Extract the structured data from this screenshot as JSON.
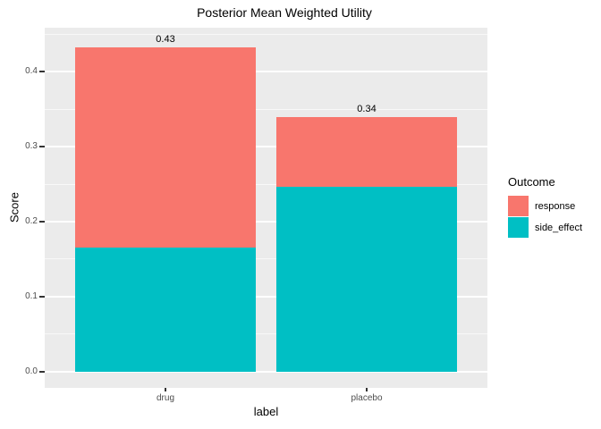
{
  "title": "Posterior Mean Weighted Utility",
  "axes": {
    "x": {
      "label": "label",
      "categories": [
        "drug",
        "placebo"
      ]
    },
    "y": {
      "label": "Score",
      "tick_labels": [
        "0.0",
        "0.1",
        "0.2",
        "0.3",
        "0.4"
      ]
    }
  },
  "legend": {
    "title": "Outcome",
    "items": [
      {
        "label": "response",
        "color": "#F8766D"
      },
      {
        "label": "side_effect",
        "color": "#00BFC4"
      }
    ]
  },
  "chart_data": {
    "type": "bar",
    "stacked": true,
    "title": "Posterior Mean Weighted Utility",
    "xlabel": "label",
    "ylabel": "Score",
    "categories": [
      "drug",
      "placebo"
    ],
    "series": [
      {
        "name": "response",
        "color": "#F8766D",
        "values": [
          0.268,
          0.093
        ]
      },
      {
        "name": "side_effect",
        "color": "#00BFC4",
        "values": [
          0.165,
          0.247
        ]
      }
    ],
    "stack_order_bottom_to_top": [
      "side_effect",
      "response"
    ],
    "totals": [
      0.43,
      0.34
    ],
    "total_labels": [
      "0.43",
      "0.34"
    ],
    "yticks": [
      0,
      0.1,
      0.2,
      0.3,
      0.4
    ],
    "yticks_minor": [
      0.05,
      0.15,
      0.25,
      0.35,
      0.45
    ],
    "ylim": [
      -0.022,
      0.459
    ],
    "grid": true,
    "legend_title": "Outcome",
    "legend_position": "right",
    "colors": {
      "panel_background": "#EBEBEB",
      "gridline": "#FFFFFF",
      "tick_label_text": "#4D4D4D",
      "text": "#000000"
    }
  }
}
